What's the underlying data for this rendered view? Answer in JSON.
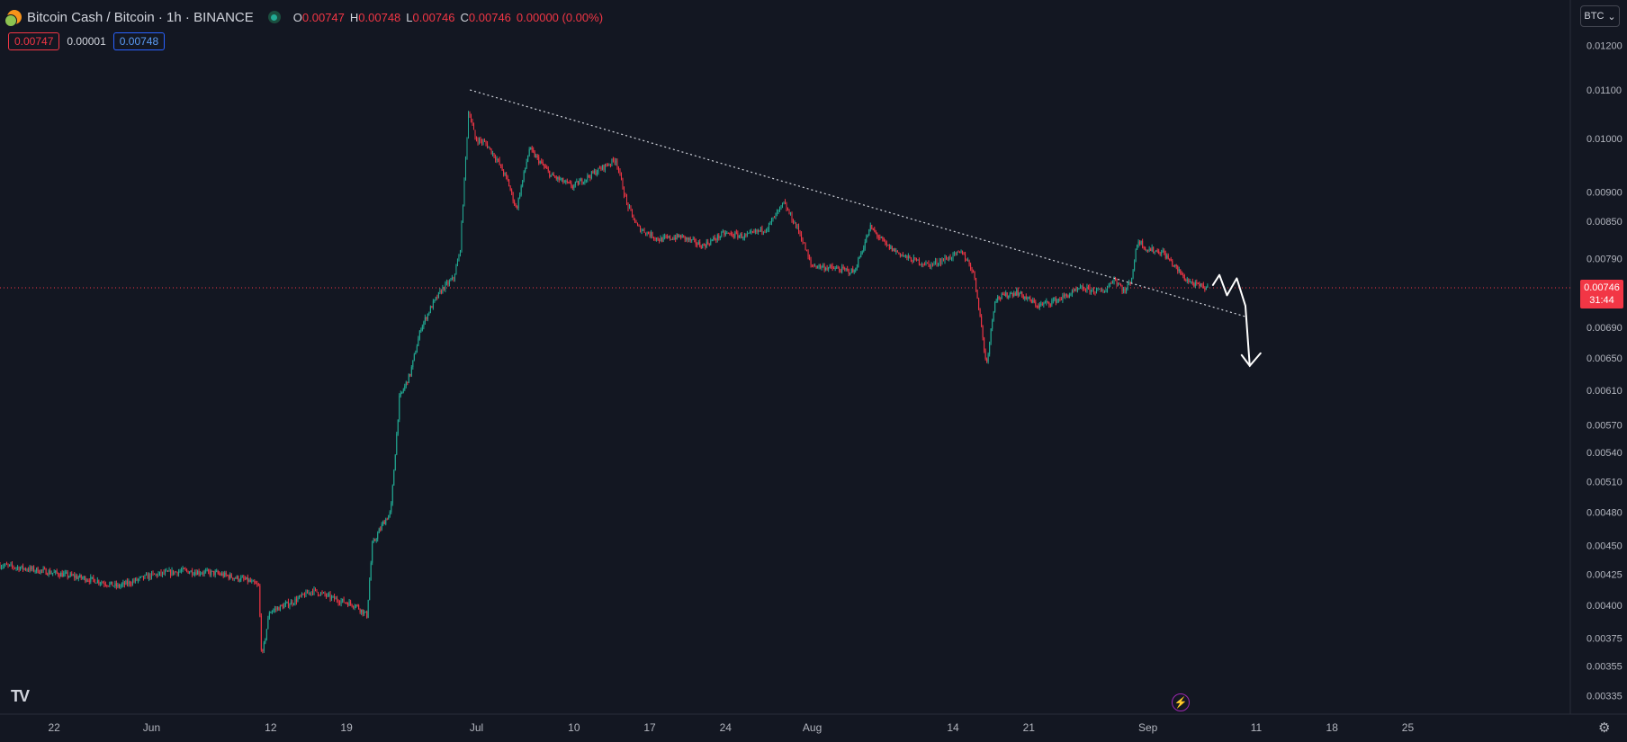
{
  "header": {
    "symbol_title": "Bitcoin Cash / Bitcoin · 1h · BINANCE",
    "ohlc": {
      "o_label": "O",
      "o_value": "0.00747",
      "h_label": "H",
      "h_value": "0.00748",
      "l_label": "L",
      "l_value": "0.00746",
      "c_label": "C",
      "c_value": "0.00746",
      "change": "0.00000 (0.00%)"
    }
  },
  "quotes": {
    "sell": "0.00747",
    "spread": "0.00001",
    "buy": "0.00748"
  },
  "currency_button": {
    "label": "BTC"
  },
  "price_tag": {
    "price": "0.00746",
    "countdown": "31:44"
  },
  "logo_text": "TV",
  "icons": {
    "status": "market-open-dot-icon",
    "lightning": "lightning-icon",
    "settings": "gear-icon",
    "chevron": "chevron-down-icon"
  },
  "colors": {
    "background": "#131722",
    "up": "#22ab94",
    "down": "#f23645",
    "text": "#d1d4dc",
    "axis_text": "#b2b5be",
    "current_price": "#f23645"
  },
  "chart_data": {
    "type": "candlestick",
    "title": "Bitcoin Cash / Bitcoin · 1h · BINANCE",
    "interval": "1h",
    "y_tick_labels": [
      "0.01200",
      "0.01100",
      "0.01000",
      "0.00900",
      "0.00850",
      "0.00790",
      "0.00746",
      "0.00690",
      "0.00650",
      "0.00610",
      "0.00570",
      "0.00540",
      "0.00510",
      "0.00480",
      "0.00450",
      "0.00425",
      "0.00400",
      "0.00375",
      "0.00355",
      "0.00335"
    ],
    "y_scale": "log",
    "x_tick_labels": [
      "22",
      "Jun",
      "12",
      "19",
      "Jul",
      "10",
      "17",
      "24",
      "Aug",
      "14",
      "21",
      "Sep",
      "11",
      "18",
      "25"
    ],
    "x_tick_days": [
      -9,
      0,
      11,
      18,
      30,
      39,
      46,
      53,
      61,
      74,
      81,
      92,
      102,
      109,
      116
    ],
    "x_range_days": [
      -14,
      131
    ],
    "current_price": 0.00746,
    "price_path": [
      [
        -14,
        0.00433
      ],
      [
        -10,
        0.00428
      ],
      [
        -5,
        0.0042
      ],
      [
        -3,
        0.00415
      ],
      [
        0,
        0.00424
      ],
      [
        3,
        0.00428
      ],
      [
        6,
        0.00426
      ],
      [
        9,
        0.0042
      ],
      [
        10,
        0.00415
      ],
      [
        10.3,
        0.0036
      ],
      [
        11,
        0.00395
      ],
      [
        13,
        0.00402
      ],
      [
        15,
        0.00412
      ],
      [
        17,
        0.00405
      ],
      [
        19,
        0.004
      ],
      [
        20,
        0.00392
      ],
      [
        20.5,
        0.0045
      ],
      [
        21.5,
        0.0047
      ],
      [
        22.2,
        0.0048
      ],
      [
        23,
        0.006
      ],
      [
        24,
        0.0063
      ],
      [
        25,
        0.0069
      ],
      [
        26,
        0.0072
      ],
      [
        27,
        0.00745
      ],
      [
        28,
        0.0076
      ],
      [
        28.6,
        0.008
      ],
      [
        29.4,
        0.0106
      ],
      [
        30,
        0.01
      ],
      [
        31,
        0.0099
      ],
      [
        32,
        0.0096
      ],
      [
        33,
        0.0092
      ],
      [
        33.8,
        0.0087
      ],
      [
        35,
        0.0098
      ],
      [
        37,
        0.0093
      ],
      [
        39,
        0.0091
      ],
      [
        41,
        0.00935
      ],
      [
        43,
        0.0096
      ],
      [
        44,
        0.0088
      ],
      [
        45,
        0.0084
      ],
      [
        47,
        0.0082
      ],
      [
        49,
        0.00825
      ],
      [
        51,
        0.0081
      ],
      [
        53,
        0.0083
      ],
      [
        55,
        0.00825
      ],
      [
        57,
        0.0084
      ],
      [
        58.5,
        0.0088
      ],
      [
        60,
        0.0083
      ],
      [
        61,
        0.0078
      ],
      [
        63,
        0.00775
      ],
      [
        65,
        0.0077
      ],
      [
        66.5,
        0.0084
      ],
      [
        68,
        0.0081
      ],
      [
        70,
        0.0079
      ],
      [
        72,
        0.0078
      ],
      [
        73.5,
        0.0079
      ],
      [
        75,
        0.008
      ],
      [
        76,
        0.0077
      ],
      [
        76.5,
        0.0072
      ],
      [
        77.2,
        0.0064
      ],
      [
        78,
        0.0073
      ],
      [
        80,
        0.0074
      ],
      [
        82,
        0.0072
      ],
      [
        84,
        0.0073
      ],
      [
        86,
        0.00745
      ],
      [
        88,
        0.0074
      ],
      [
        89,
        0.0076
      ],
      [
        90,
        0.0074
      ],
      [
        90.6,
        0.0076
      ],
      [
        91.2,
        0.0082
      ],
      [
        92,
        0.00805
      ],
      [
        93.5,
        0.008
      ],
      [
        94.5,
        0.0078
      ],
      [
        95.5,
        0.0076
      ],
      [
        96.5,
        0.0075
      ],
      [
        97.5,
        0.00746
      ]
    ],
    "annotations": [
      {
        "type": "trendline",
        "style": "dotted",
        "from": [
          29.4,
          0.011
        ],
        "to": [
          101,
          0.00705
        ]
      },
      {
        "type": "freehand_arrow",
        "direction": "down",
        "points": [
          [
            98,
            0.0075
          ],
          [
            98.6,
            0.00765
          ],
          [
            99.3,
            0.00735
          ],
          [
            100.2,
            0.0076
          ],
          [
            101,
            0.0072
          ],
          [
            101.4,
            0.0064
          ]
        ]
      }
    ]
  }
}
